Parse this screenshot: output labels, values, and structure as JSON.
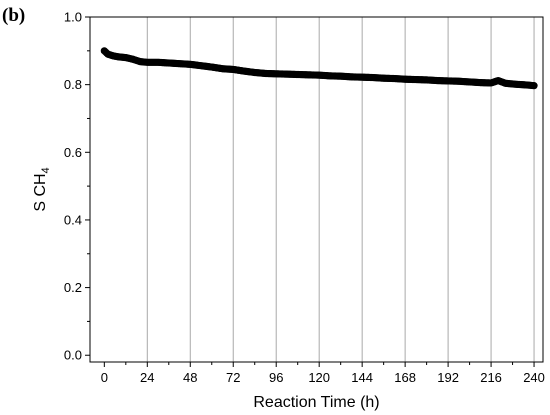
{
  "panel_label": "(b)",
  "chart_data": {
    "type": "scatter",
    "xlabel": "Reaction Time (h)",
    "ylabel": "S CH",
    "ylabel_subscript": "4",
    "xlim": [
      -8,
      245
    ],
    "ylim": [
      -0.02,
      1.0
    ],
    "xticks": [
      0,
      24,
      48,
      72,
      96,
      120,
      144,
      168,
      192,
      216,
      240
    ],
    "yticks": [
      0.0,
      0.2,
      0.4,
      0.6,
      0.8,
      1.0
    ],
    "ytick_labels": [
      "0.0",
      "0.2",
      "0.4",
      "0.6",
      "0.8",
      "1.0"
    ],
    "grid": "vertical",
    "marker_color": "#000000",
    "series": [
      {
        "x": [
          0,
          2,
          5,
          8,
          12,
          16,
          20,
          24,
          30,
          36,
          42,
          48,
          54,
          60,
          66,
          72,
          78,
          84,
          90,
          96,
          102,
          108,
          114,
          120,
          126,
          132,
          138,
          144,
          150,
          156,
          162,
          168,
          174,
          180,
          186,
          192,
          198,
          204,
          210,
          216,
          220,
          224,
          230,
          236,
          240
        ],
        "y": [
          0.9,
          0.89,
          0.885,
          0.882,
          0.88,
          0.875,
          0.868,
          0.866,
          0.866,
          0.864,
          0.862,
          0.86,
          0.856,
          0.852,
          0.847,
          0.845,
          0.84,
          0.836,
          0.833,
          0.832,
          0.831,
          0.83,
          0.829,
          0.828,
          0.826,
          0.825,
          0.823,
          0.822,
          0.821,
          0.819,
          0.818,
          0.816,
          0.815,
          0.814,
          0.812,
          0.811,
          0.81,
          0.808,
          0.806,
          0.805,
          0.812,
          0.804,
          0.801,
          0.799,
          0.797
        ]
      }
    ]
  }
}
